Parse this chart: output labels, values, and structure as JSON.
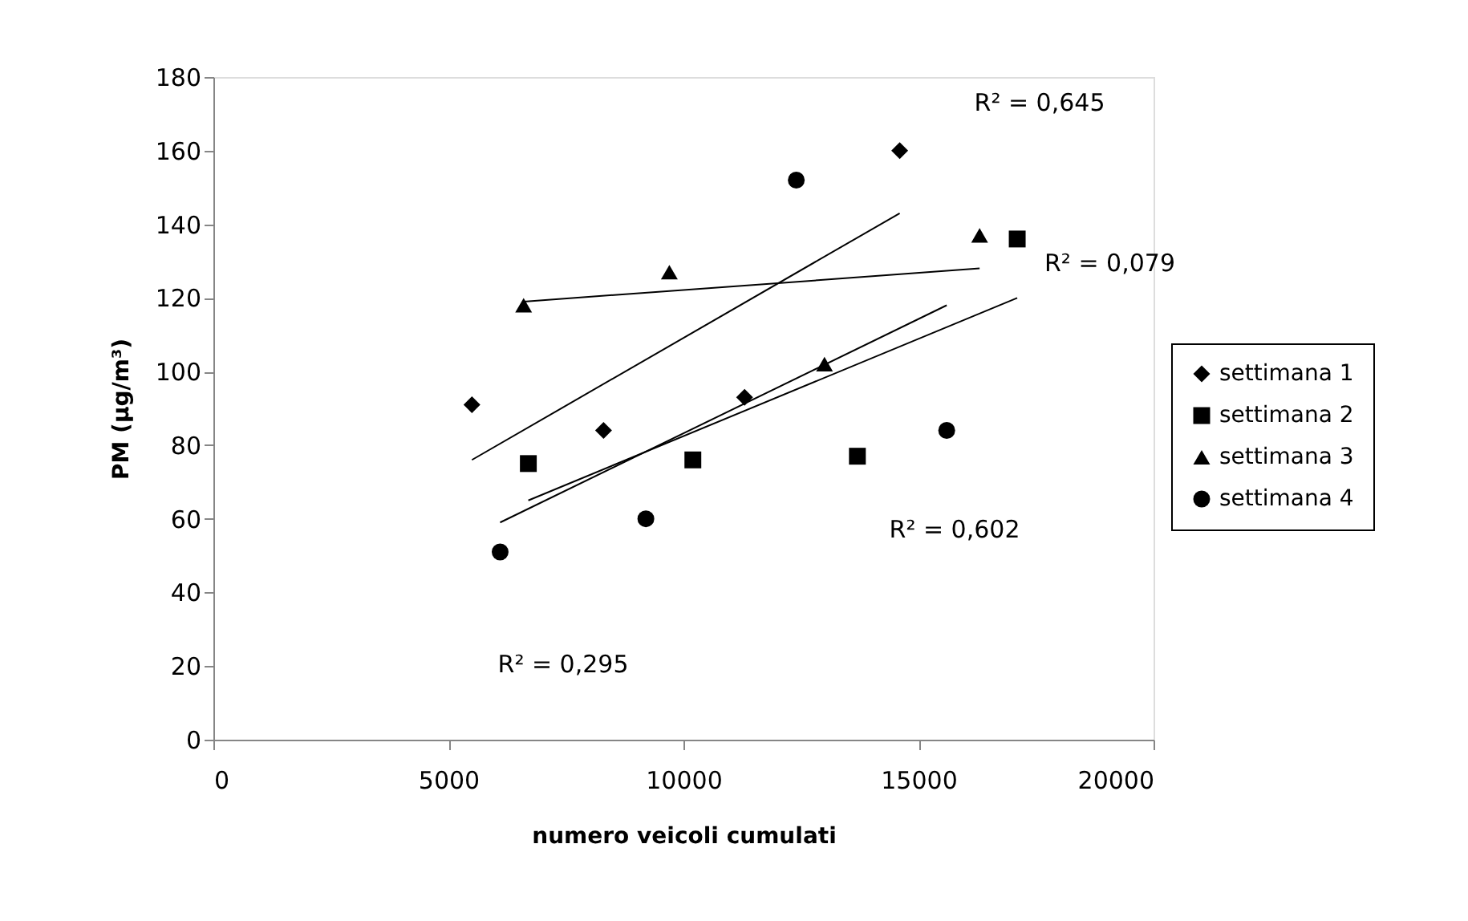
{
  "chart_data": {
    "type": "scatter",
    "xlabel": "numero veicoli cumulati",
    "ylabel": "PM (µg/m³)",
    "xlim": [
      0,
      20000
    ],
    "xticks": [
      0,
      5000,
      10000,
      15000,
      20000
    ],
    "ylim": [
      0,
      180
    ],
    "yticks": [
      0,
      20,
      40,
      60,
      80,
      100,
      120,
      140,
      160,
      180
    ],
    "grid": false,
    "legend": "right",
    "series": [
      {
        "name": "settimana 1",
        "color": "#000000",
        "marker": "diamond",
        "x": [
          5500,
          8300,
          11300,
          14600
        ],
        "values": [
          91,
          84,
          93,
          160
        ]
      },
      {
        "name": "settimana 2",
        "color": "#000000",
        "marker": "square",
        "x": [
          6700,
          10200,
          13700,
          17100
        ],
        "values": [
          75,
          76,
          77,
          136
        ]
      },
      {
        "name": "settimana 3",
        "color": "#000000",
        "marker": "triangle",
        "x": [
          6600,
          9700,
          13000,
          16300
        ],
        "values": [
          118,
          127,
          102,
          137
        ]
      },
      {
        "name": "settimana 4",
        "color": "#000000",
        "marker": "circle",
        "x": [
          6100,
          9200,
          12400,
          15600
        ],
        "values": [
          51,
          60,
          152,
          84
        ]
      },
      {
        "type": "line",
        "color": "#000000",
        "marker": "none",
        "x": [
          5500,
          14600
        ],
        "values": [
          76,
          143
        ]
      },
      {
        "type": "line",
        "color": "#000000",
        "marker": "none",
        "x": [
          6700,
          17100
        ],
        "values": [
          65,
          120
        ]
      },
      {
        "type": "line",
        "color": "#000000",
        "marker": "none",
        "x": [
          6600,
          16300
        ],
        "values": [
          119,
          128
        ]
      },
      {
        "type": "line",
        "color": "#000000",
        "marker": "none",
        "x": [
          6100,
          15600
        ],
        "values": [
          59,
          118
        ]
      }
    ],
    "annotations": [
      "R² = 0,645",
      "R² = 0,079",
      "R² = 0,602",
      "R² = 0,295"
    ]
  }
}
